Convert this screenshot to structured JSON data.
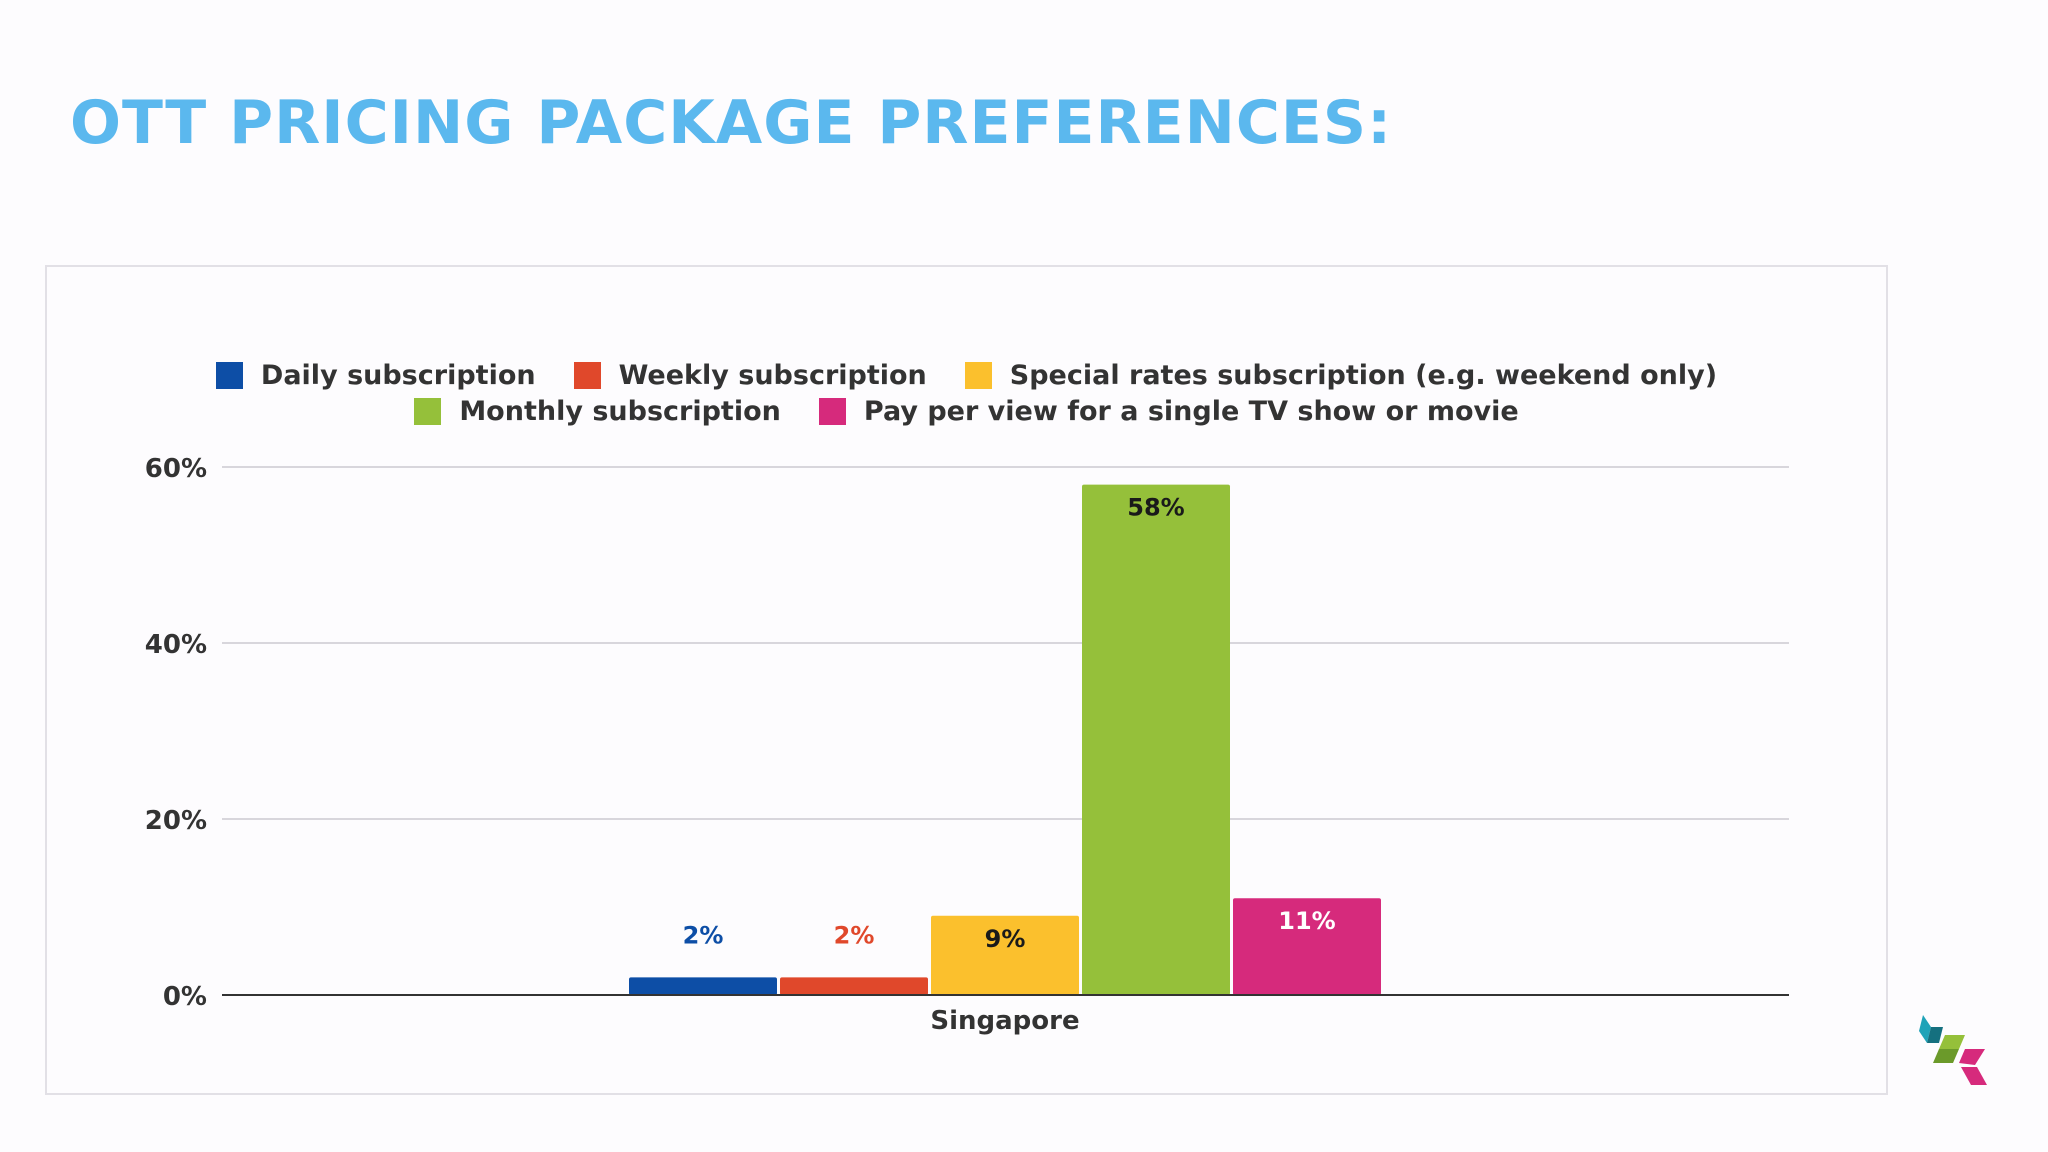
{
  "slide": {
    "title": "OTT PRICING PACKAGE PREFERENCES:"
  },
  "chart_data": {
    "type": "bar",
    "title": "",
    "categories": [
      "Singapore"
    ],
    "series": [
      {
        "name": "Daily subscription",
        "values": [
          2
        ],
        "color": "#0d4ea6",
        "label": "2%",
        "label_color": "#0d4ea6",
        "label_position": "above"
      },
      {
        "name": "Weekly subscription",
        "values": [
          2
        ],
        "color": "#e0482b",
        "label": "2%",
        "label_color": "#e0482b",
        "label_position": "above"
      },
      {
        "name": "Special rates subscription (e.g. weekend only)",
        "values": [
          9
        ],
        "color": "#fbc02d",
        "label": "9%",
        "label_color": "#1a1a1a",
        "label_position": "inside"
      },
      {
        "name": "Monthly subscription",
        "values": [
          58
        ],
        "color": "#95c03a",
        "label": "58%",
        "label_color": "#1a1a1a",
        "label_position": "inside"
      },
      {
        "name": "Pay per view for a single TV show or movie",
        "values": [
          11
        ],
        "color": "#d62a7c",
        "label": "11%",
        "label_color": "#ffffff",
        "label_position": "inside"
      }
    ],
    "legend_rows": [
      [
        0,
        1,
        2
      ],
      [
        3,
        4
      ]
    ],
    "xlabel": "",
    "ylabel": "",
    "ylim": [
      0,
      60
    ],
    "yticks": [
      {
        "value": 0,
        "label": "0%"
      },
      {
        "value": 20,
        "label": "20%"
      },
      {
        "value": 40,
        "label": "40%"
      },
      {
        "value": 60,
        "label": "60%"
      }
    ],
    "grid": true,
    "legend_position": "top"
  },
  "colors": {
    "title": "#5bb8ee",
    "grid": "#d8d6dc",
    "axis": "#333333",
    "text": "#333333"
  },
  "logo": {
    "icon": "cube-logo-icon"
  }
}
